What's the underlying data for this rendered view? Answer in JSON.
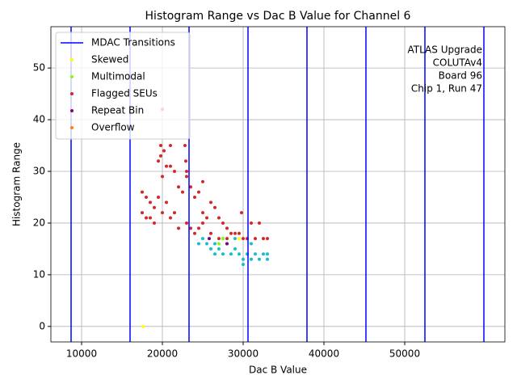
{
  "chart_data": {
    "type": "scatter",
    "title": "Histogram Range vs Dac B Value for Channel 6",
    "x_label": "Dac B Value",
    "y_label": "Histogram Range",
    "annotation": [
      "ATLAS Upgrade",
      "COLUTAv4",
      "Board 96",
      "Chip 1, Run 47"
    ],
    "xlim": [
      6200,
      62400
    ],
    "ylim": [
      -3,
      58
    ],
    "xticks": [
      10000,
      20000,
      30000,
      40000,
      50000
    ],
    "yticks": [
      0,
      10,
      20,
      30,
      40,
      50
    ],
    "grid": true,
    "legend": "upper left",
    "transitions": {
      "name": "MDAC Transitions",
      "color": "#0000ff",
      "x": [
        8700,
        16000,
        23300,
        30600,
        37900,
        45200,
        52500,
        59800
      ]
    },
    "series": [
      {
        "color": "#17becf",
        "x": [
          24500,
          25000,
          25500,
          26000,
          26500,
          26500,
          27000,
          27500,
          28000,
          28500,
          29000,
          29500,
          30000,
          30000,
          30500,
          31000,
          31500,
          32000,
          32500,
          33000,
          33000,
          31000,
          29000,
          27500
        ],
        "values": [
          16,
          17,
          16,
          15,
          16,
          14,
          15,
          14,
          16,
          14,
          15,
          14,
          13,
          12,
          14,
          13,
          14,
          13,
          14,
          13,
          14,
          16,
          17,
          17
        ]
      },
      {
        "name": "Skewed",
        "color": "#ffff00",
        "x": [
          17600,
          30000,
          29500
        ],
        "values": [
          0,
          17,
          17
        ]
      },
      {
        "name": "Multimodal",
        "color": "#7fff00",
        "x": [
          27500,
          27000
        ],
        "values": [
          17,
          16
        ]
      },
      {
        "name": "Flagged SEUs",
        "color": "#d62728",
        "x": [
          17500,
          17500,
          18000,
          18000,
          18500,
          18500,
          19000,
          19000,
          19500,
          19500,
          19800,
          20000,
          20000,
          20200,
          20500,
          20500,
          21000,
          21000,
          21500,
          21500,
          22000,
          22000,
          22500,
          22800,
          23000,
          23000,
          23500,
          23500,
          24000,
          24000,
          24500,
          24500,
          25000,
          25000,
          25500,
          26000,
          26000,
          26500,
          27000,
          27000,
          27500,
          28000,
          28000,
          28500,
          29000,
          29500,
          29800,
          30000,
          30500,
          31000,
          31500,
          32000,
          32500,
          33000,
          20000,
          21000,
          22900,
          23000,
          19800,
          25000
        ],
        "values": [
          26,
          22,
          25,
          21,
          24,
          21,
          23,
          20,
          32,
          25,
          35,
          29,
          22,
          34,
          31,
          24,
          35,
          21,
          30,
          22,
          27,
          19,
          26,
          35,
          30,
          20,
          27,
          19,
          25,
          18,
          26,
          19,
          28,
          20,
          21,
          24,
          18,
          23,
          21,
          17,
          20,
          19,
          17,
          18,
          18,
          18,
          22,
          17,
          17,
          20,
          17,
          20,
          17,
          17,
          42,
          31,
          32,
          29,
          33,
          22
        ]
      },
      {
        "name": "Repeat Bin",
        "color": "#800080",
        "x": [
          25800,
          28000
        ],
        "values": [
          17,
          16
        ]
      },
      {
        "name": "Overflow",
        "color": "#ff7f0e",
        "x": [],
        "values": []
      }
    ]
  }
}
